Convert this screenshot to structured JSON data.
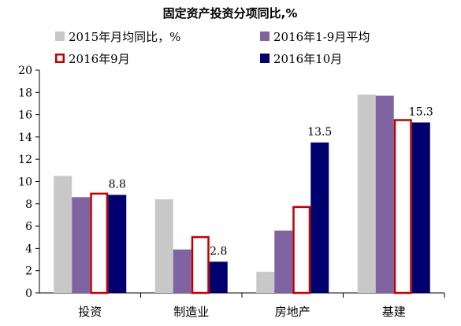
{
  "chart_data": {
    "type": "bar",
    "title": "固定资产投资分项同比,%",
    "categories": [
      "投资",
      "制造业",
      "房地产",
      "基建"
    ],
    "ylim": [
      0,
      20
    ],
    "yticks": [
      0,
      2,
      4,
      6,
      8,
      10,
      12,
      14,
      16,
      18,
      20
    ],
    "legend_position": "top",
    "series": [
      {
        "name": "2015年月均同比，%",
        "values": [
          10.5,
          8.4,
          1.9,
          17.8
        ],
        "color": "#c8c8c8",
        "style": "filled"
      },
      {
        "name": "2016年1-9月平均",
        "values": [
          8.6,
          3.9,
          5.6,
          17.7
        ],
        "color": "#8064a2",
        "style": "filled"
      },
      {
        "name": "2016年9月",
        "values": [
          9.0,
          5.1,
          7.8,
          15.6
        ],
        "color": "#c00000",
        "style": "outline"
      },
      {
        "name": "2016年10月",
        "values": [
          8.8,
          2.8,
          13.5,
          15.3
        ],
        "color": "#00006e",
        "style": "filled"
      }
    ],
    "data_labels": [
      {
        "series": 3,
        "category": 0,
        "text": "8.8"
      },
      {
        "series": 3,
        "category": 1,
        "text": "2.8"
      },
      {
        "series": 3,
        "category": 2,
        "text": "13.5"
      },
      {
        "series": 3,
        "category": 3,
        "text": "15.3"
      }
    ]
  }
}
